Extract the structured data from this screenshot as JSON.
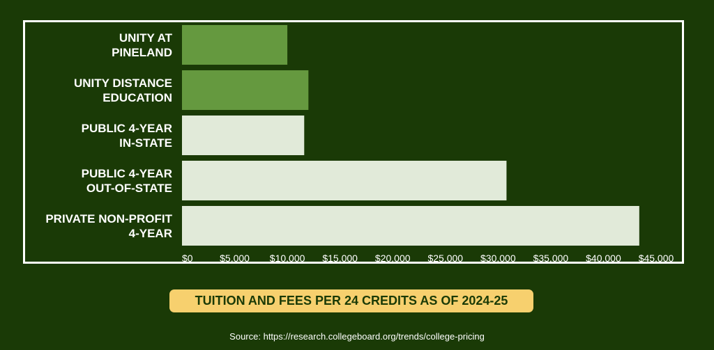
{
  "chart_data": {
    "type": "bar",
    "orientation": "horizontal",
    "title": "TUITION AND FEES PER 24 CREDITS AS OF 2024-25",
    "categories": [
      [
        "UNITY AT",
        "PINELAND"
      ],
      [
        "UNITY DISTANCE",
        "EDUCATION"
      ],
      [
        "PUBLIC 4-YEAR",
        "IN-STATE"
      ],
      [
        "PUBLIC 4-YEAR",
        "OUT-OF-STATE"
      ],
      [
        "PRIVATE NON-PROFIT",
        "4-YEAR"
      ]
    ],
    "values": [
      10000,
      12000,
      11600,
      30800,
      43400
    ],
    "bar_colors": [
      "#65993f",
      "#65993f",
      "#e1ead9",
      "#e1ead9",
      "#e1ead9"
    ],
    "xlim": [
      0,
      45000
    ],
    "x_ticks": [
      0,
      5000,
      10000,
      15000,
      20000,
      25000,
      30000,
      35000,
      40000,
      45000
    ],
    "x_tick_labels": [
      "$0",
      "$5,000",
      "$10,000",
      "$15,000",
      "$20,000",
      "$25,000",
      "$30,000",
      "$35,000",
      "$40,000",
      "$45,000"
    ],
    "grid": false,
    "xlabel": "",
    "ylabel": ""
  },
  "footer": {
    "source": "Source: https://research.collegeboard.org/trends/college-pricing"
  },
  "colors": {
    "background": "#1a3a06",
    "frame": "#ffffff",
    "title_badge": "#f7d06e",
    "title_text": "#1a3a06"
  }
}
